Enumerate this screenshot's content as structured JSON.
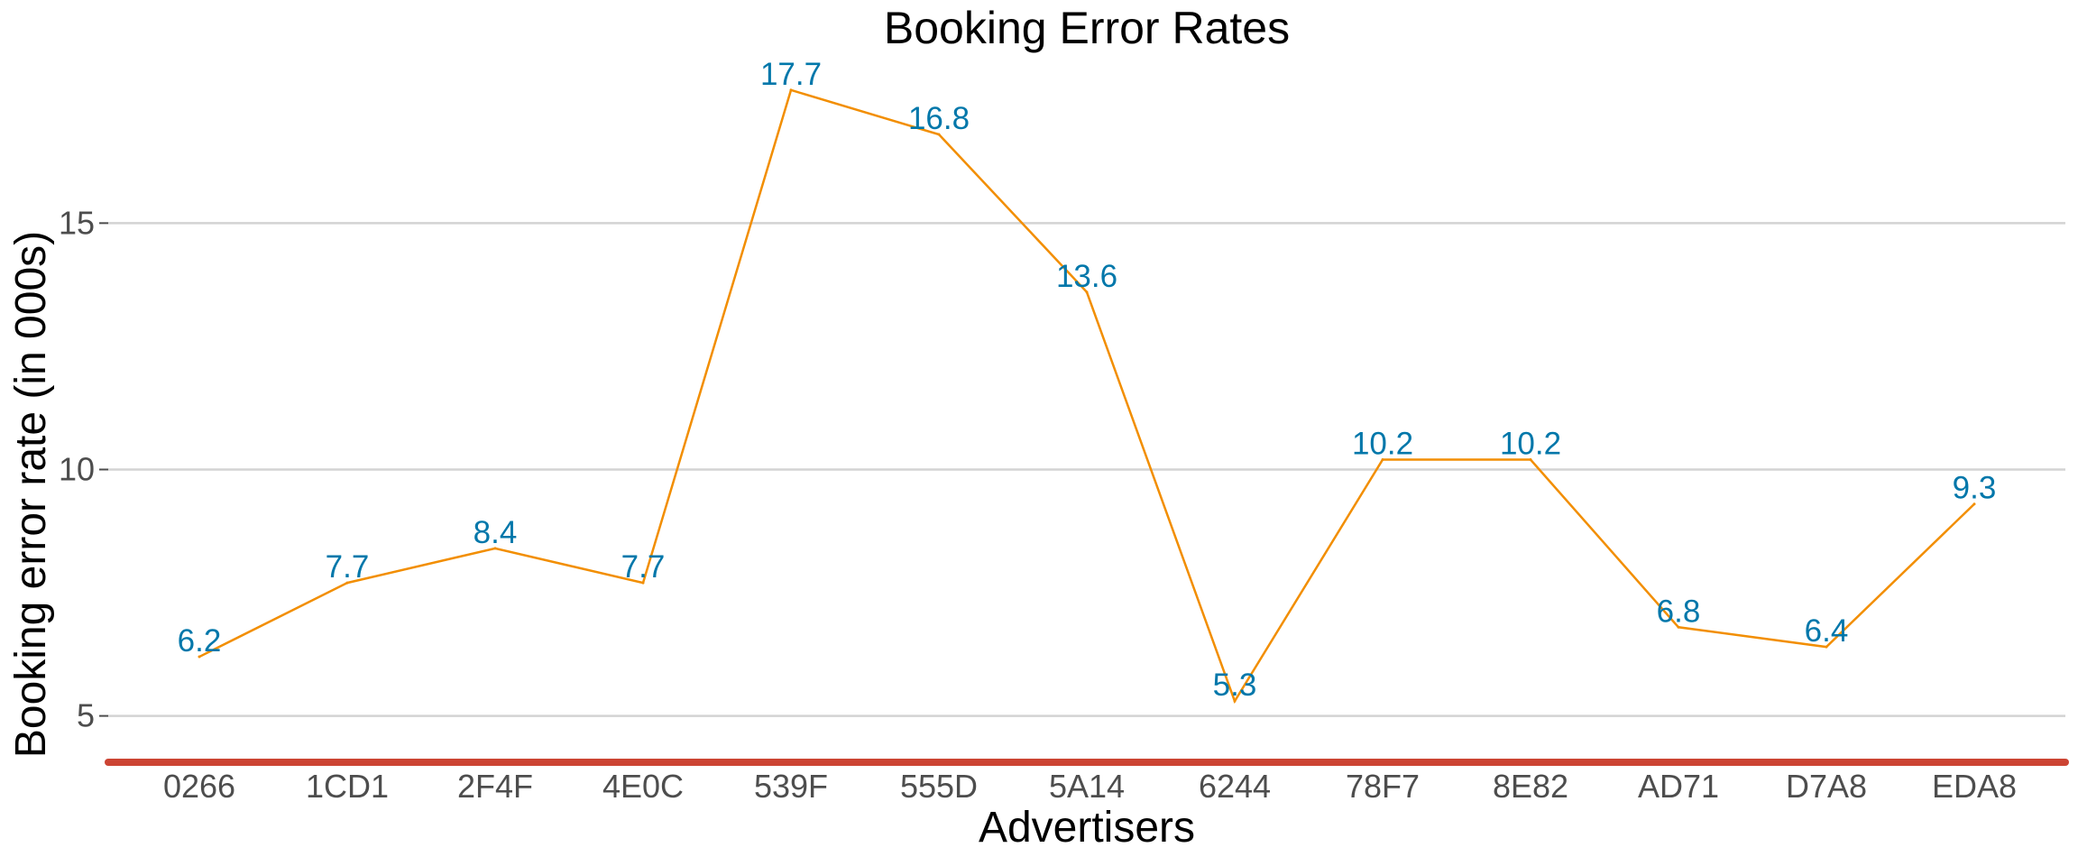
{
  "chart_data": {
    "type": "line",
    "title": "Booking Error Rates",
    "xlabel": "Advertisers",
    "ylabel": "Booking error rate (in 000s)",
    "categories": [
      "0266",
      "1CD1",
      "2F4F",
      "4E0C",
      "539F",
      "555D",
      "5A14",
      "6244",
      "78F7",
      "8E82",
      "AD71",
      "D7A8",
      "EDA8"
    ],
    "values": [
      6.2,
      7.7,
      8.4,
      7.7,
      17.7,
      16.8,
      13.6,
      5.3,
      10.2,
      10.2,
      6.8,
      6.4,
      9.3
    ],
    "data_labels": [
      "6.2",
      "7.7",
      "8.4",
      "7.7",
      "17.7",
      "16.8",
      "13.6",
      "5.3",
      "10.2",
      "10.2",
      "6.8",
      "6.4",
      "9.3"
    ],
    "y_ticks": [
      5,
      10,
      15
    ],
    "y_tick_labels": [
      "5",
      "10",
      "15"
    ],
    "ylim": [
      4.7,
      18.1
    ],
    "grid": "horizontal major only",
    "legend": "none",
    "colors": {
      "line": "#F28E00",
      "data_label": "#0077AA",
      "x_axis_line": "#CC4433",
      "gridline": "#D3D3D3",
      "tick_label": "#4D4D4D"
    }
  }
}
